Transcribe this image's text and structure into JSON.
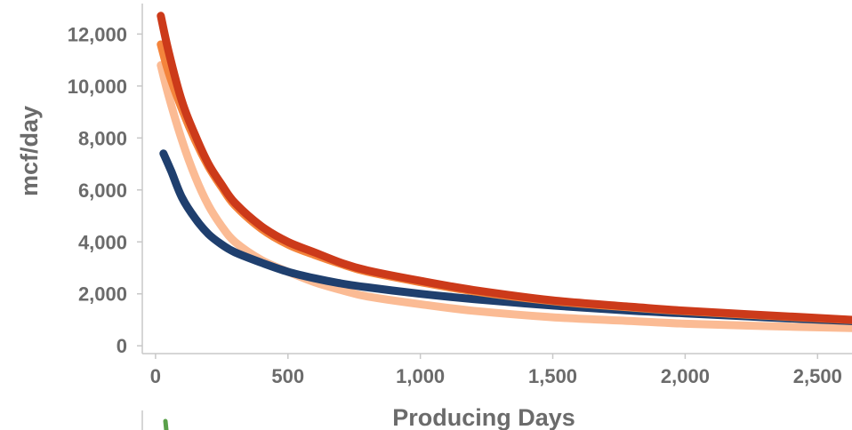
{
  "chart_data": {
    "type": "line",
    "title": "",
    "xlabel": "Producing Days",
    "ylabel": "mcf/day",
    "xlim": [
      -50,
      2630
    ],
    "ylim": [
      -300,
      12900
    ],
    "x_ticks": [
      0,
      500,
      1000,
      1500,
      2000,
      2500
    ],
    "x_tick_labels": [
      "0",
      "500",
      "1,000",
      "1,500",
      "2,000",
      "2,500"
    ],
    "y_ticks": [
      0,
      2000,
      4000,
      6000,
      8000,
      10000,
      12000
    ],
    "y_tick_labels": [
      "0",
      "2,000",
      "4,000",
      "6,000",
      "8,000",
      "10,000",
      "12,000"
    ],
    "grid": false,
    "legend": "none",
    "series": [
      {
        "color": "#1f3f6e",
        "x": [
          30,
          60,
          100,
          150,
          200,
          250,
          300,
          400,
          500,
          600,
          700,
          800,
          1000,
          1200,
          1500,
          1800,
          2000,
          2300,
          2630
        ],
        "y": [
          7400,
          6700,
          5700,
          4900,
          4300,
          3900,
          3600,
          3200,
          2850,
          2600,
          2400,
          2250,
          2000,
          1800,
          1550,
          1350,
          1250,
          1100,
          950
        ]
      },
      {
        "color": "#cc3a1a",
        "x": [
          20,
          50,
          100,
          150,
          200,
          250,
          300,
          400,
          500,
          600,
          700,
          800,
          1000,
          1200,
          1500,
          1800,
          2000,
          2300,
          2630
        ],
        "y": [
          12700,
          11300,
          9400,
          8100,
          7000,
          6200,
          5500,
          4600,
          4000,
          3600,
          3200,
          2900,
          2500,
          2150,
          1750,
          1500,
          1350,
          1180,
          1000
        ]
      },
      {
        "color": "#f4843c",
        "x": [
          20,
          50,
          100,
          150,
          200,
          250,
          300,
          400,
          500,
          600,
          700,
          800,
          1000,
          1200,
          1500,
          1800,
          2000,
          2300,
          2630
        ],
        "y": [
          11600,
          10500,
          9100,
          7900,
          6900,
          6100,
          5400,
          4500,
          3900,
          3500,
          3150,
          2850,
          2450,
          2100,
          1720,
          1470,
          1330,
          1160,
          990
        ]
      },
      {
        "color": "#fbbb94",
        "x": [
          20,
          50,
          100,
          150,
          200,
          250,
          300,
          400,
          500,
          600,
          700,
          800,
          1000,
          1200,
          1500,
          1800,
          2000,
          2300,
          2630
        ],
        "y": [
          10800,
          9600,
          7900,
          6500,
          5400,
          4600,
          4000,
          3300,
          2850,
          2450,
          2150,
          1900,
          1600,
          1350,
          1100,
          950,
          850,
          760,
          680
        ]
      }
    ]
  }
}
